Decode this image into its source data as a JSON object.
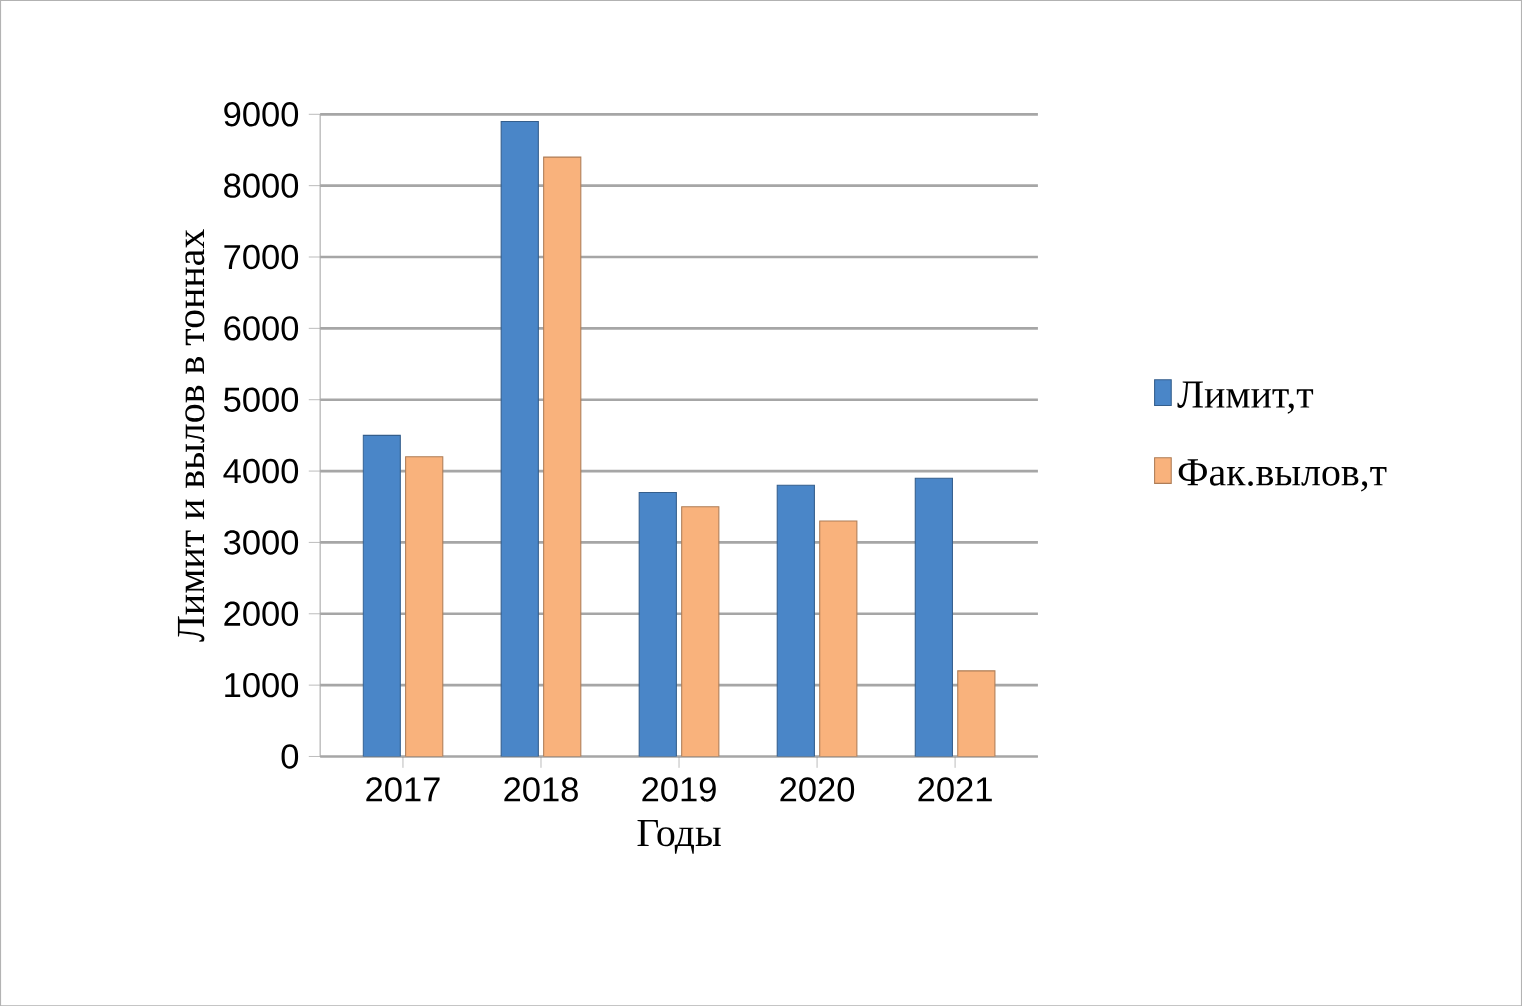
{
  "chart_data": {
    "type": "bar",
    "xlabel": "Годы",
    "ylabel": "Лимит и вылов в тоннах",
    "categories": [
      "2017",
      "2018",
      "2019",
      "2020",
      "2021"
    ],
    "series": [
      {
        "name": "Лимит,т",
        "color": "#4a86c8",
        "values": [
          4500,
          8900,
          3700,
          3800,
          3900
        ]
      },
      {
        "name": "Фак.вылов,т",
        "color": "#f9b27c",
        "values": [
          4200,
          8400,
          3500,
          3300,
          1200
        ]
      }
    ],
    "ylim": [
      0,
      9000
    ],
    "yticks": [
      0,
      1000,
      2000,
      3000,
      4000,
      5000,
      6000,
      7000,
      8000,
      9000
    ],
    "grid": "y",
    "legend": "right"
  }
}
